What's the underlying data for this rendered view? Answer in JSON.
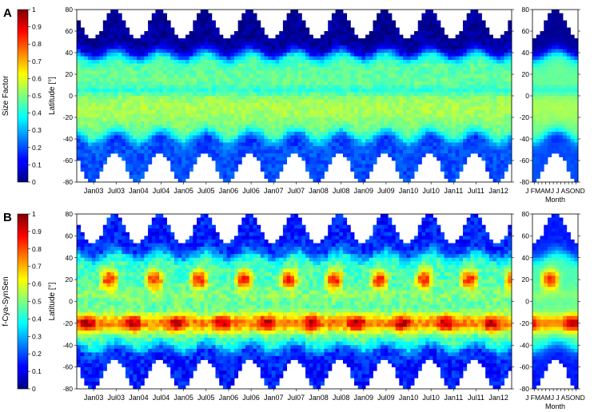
{
  "chart_data": [
    {
      "type": "heatmap",
      "panel_label": "A",
      "colorbar": {
        "label": "Size Factor",
        "range": [
          0,
          1
        ],
        "ticks": [
          "0",
          "0.1",
          "0.2",
          "0.3",
          "0.4",
          "0.5",
          "0.6",
          "0.7",
          "0.8",
          "0.9",
          "1"
        ],
        "colormap": "jet"
      },
      "main": {
        "ylabel": "Latitude [°]",
        "ylim": [
          -80,
          80
        ],
        "yticks": [
          "80",
          "60",
          "40",
          "20",
          "0",
          "-20",
          "-40",
          "-60",
          "-80"
        ],
        "x_start": "Sep 2002",
        "x_end": "Apr 2012",
        "xticks": [
          "Jan03",
          "Jul03",
          "Jan04",
          "Jul04",
          "Jan05",
          "Jul05",
          "Jan06",
          "Jul06",
          "Jan07",
          "Jul07",
          "Jan08",
          "Jul08",
          "Jan09",
          "Jul09",
          "Jan10",
          "Jul10",
          "Jan11",
          "Jul11",
          "Jan12"
        ]
      },
      "climatology": {
        "xlabel": "Month",
        "month_letters": [
          "J",
          "F",
          "M",
          "A",
          "M",
          "J",
          "J",
          "A",
          "S",
          "O",
          "N",
          "D"
        ],
        "month_tick_text": "J FMAMJ J ASOND",
        "yticks": [
          "80",
          "60",
          "40",
          "20",
          "0",
          "-20",
          "-40",
          "-60",
          "-80"
        ]
      },
      "pattern": {
        "high_lat": 0.2,
        "subtropical_band": 0.65,
        "tropical_core": 0.72,
        "equator": 0.6,
        "southern_band": 0.35
      }
    },
    {
      "type": "heatmap",
      "panel_label": "B",
      "colorbar": {
        "label": "f-Cya-SynSen",
        "range": [
          0,
          1
        ],
        "ticks": [
          "0",
          "0.1",
          "0.2",
          "0.3",
          "0.4",
          "0.5",
          "0.6",
          "0.7",
          "0.8",
          "0.9",
          "1"
        ],
        "colormap": "jet"
      },
      "main": {
        "ylabel": "Latitude [°]",
        "ylim": [
          -80,
          80
        ],
        "yticks": [
          "80",
          "60",
          "40",
          "20",
          "0",
          "-20",
          "-40",
          "-60",
          "-80"
        ],
        "x_start": "Sep 2002",
        "x_end": "Apr 2012",
        "xticks": [
          "Jan03",
          "Jul03",
          "Jan04",
          "Jul04",
          "Jan05",
          "Jul05",
          "Jan06",
          "Jul06",
          "Jan07",
          "Jul07",
          "Jan08",
          "Jul08",
          "Jan09",
          "Jul09",
          "Jan10",
          "Jul10",
          "Jan11",
          "Jul11",
          "Jan12"
        ]
      },
      "climatology": {
        "xlabel": "Month",
        "month_letters": [
          "J",
          "F",
          "M",
          "A",
          "M",
          "J",
          "J",
          "A",
          "S",
          "O",
          "N",
          "D"
        ],
        "month_tick_text": "J FMAMJ J ASOND",
        "yticks": [
          "80",
          "60",
          "40",
          "20",
          "0",
          "-20",
          "-40",
          "-60",
          "-80"
        ]
      },
      "pattern": {
        "high_lat": 0.15,
        "north_peak_lat": 20,
        "north_peak": 0.85,
        "south_peak_lat": -20,
        "south_peak": 0.95,
        "background": 0.45
      }
    }
  ]
}
